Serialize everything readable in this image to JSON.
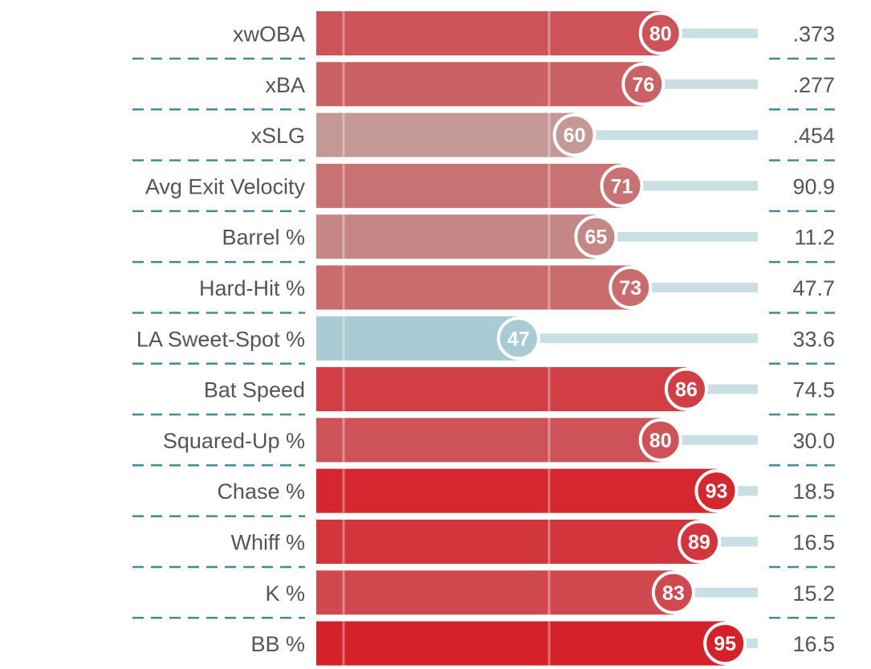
{
  "chart_data": {
    "type": "bar",
    "orientation": "horizontal",
    "scale": "percentile",
    "xlim": [
      0,
      100
    ],
    "categories": [
      "xwOBA",
      "xBA",
      "xSLG",
      "Avg Exit Velocity",
      "Barrel %",
      "Hard-Hit %",
      "LA Sweet-Spot %",
      "Bat Speed",
      "Squared-Up %",
      "Chase %",
      "Whiff %",
      "K %",
      "BB %"
    ],
    "series": [
      {
        "values": [
          80,
          76,
          60,
          71,
          65,
          73,
          47,
          86,
          80,
          93,
          89,
          83,
          95
        ]
      }
    ],
    "value_labels": [
      ".373",
      ".277",
      ".454",
      "90.9",
      "11.2",
      "47.7",
      "33.6",
      "74.5",
      "30.0",
      "18.5",
      "16.5",
      "15.2",
      "16.5"
    ],
    "colors": {
      "high": "#d6202a",
      "mid": "#bdbab3",
      "low": "#a9cbd3",
      "track": "#c9dfe3",
      "separator": "#3d8e96",
      "gridline": "#ffffff"
    },
    "grid": true,
    "legend": "none"
  },
  "page": {
    "top_clipped_text": ""
  }
}
